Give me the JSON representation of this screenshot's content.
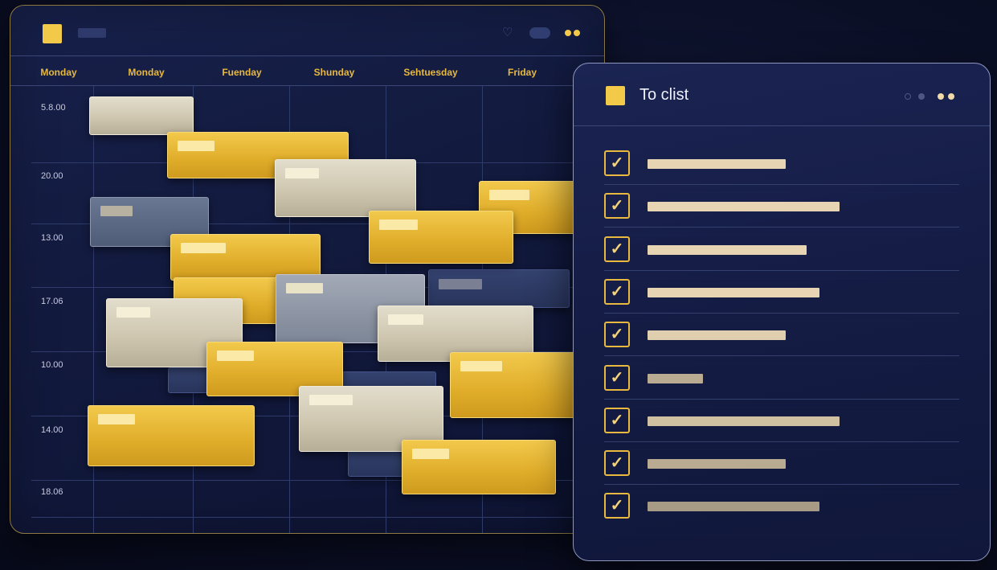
{
  "calendar": {
    "days": [
      "Monday",
      "Monday",
      "Fuenday",
      "Shunday",
      "Sehtuesday",
      "Friday"
    ],
    "times": [
      "5.8.00",
      "20.00",
      "13.00",
      "17.06",
      "10.00",
      "14.00",
      "18.06"
    ]
  },
  "todo": {
    "title": "To clist",
    "check_glyph": "✓",
    "tasks": [
      {
        "checked": true,
        "bar_color": "#e6d4b2"
      },
      {
        "checked": true,
        "bar_color": "#e6d4b2"
      },
      {
        "checked": true,
        "bar_color": "#e6d4b2"
      },
      {
        "checked": true,
        "bar_color": "#e6d4b2"
      },
      {
        "checked": true,
        "bar_color": "#e0cfae"
      },
      {
        "checked": true,
        "bar_color": "#b9ab92"
      },
      {
        "checked": true,
        "bar_color": "#cfc0a2"
      },
      {
        "checked": true,
        "bar_color": "#b9ab92"
      },
      {
        "checked": true,
        "bar_color": "#a89b86"
      }
    ]
  },
  "colors": {
    "accent": "#f3c94a",
    "background": "#0b0f26",
    "panel": "#141c44"
  }
}
